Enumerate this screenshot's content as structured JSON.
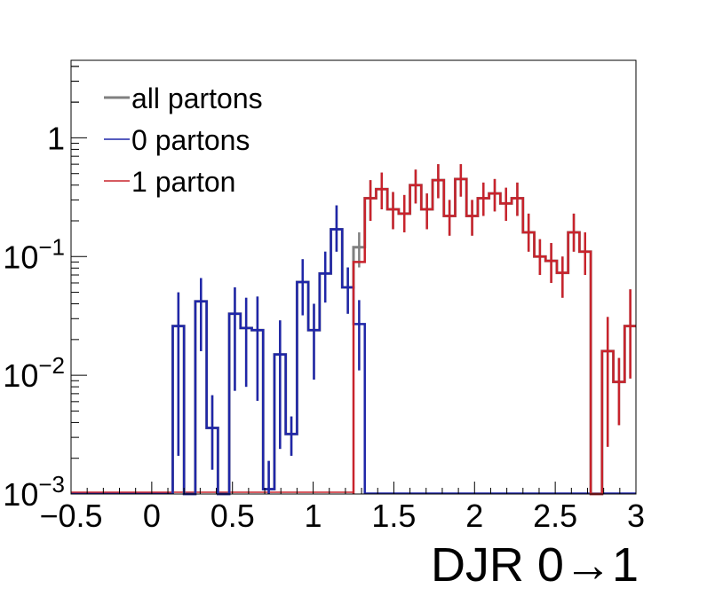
{
  "chart_data": {
    "type": "histogram",
    "xlabel": "DJR 0→1",
    "x_ticks": [
      "−0.5",
      "0",
      "0.5",
      "1",
      "1.5",
      "2",
      "2.5",
      "3"
    ],
    "x_tick_values": [
      -0.5,
      0,
      0.5,
      1,
      1.5,
      2,
      2.5,
      3
    ],
    "y_ticks": [
      {
        "value": 1,
        "base": "1",
        "exp": ""
      },
      {
        "value": 0.1,
        "base": "10",
        "exp": "−1"
      },
      {
        "value": 0.01,
        "base": "10",
        "exp": "−2"
      },
      {
        "value": 0.001,
        "base": "10",
        "exp": "−3"
      }
    ],
    "xlim": [
      -0.5,
      3.0
    ],
    "ylim": [
      0.001,
      4.5
    ],
    "log_y": true,
    "bin_width": 0.07,
    "legend": [
      {
        "name": "all partons",
        "color": "#808080"
      },
      {
        "name": "0 partons",
        "color": "#1f26a8"
      },
      {
        "name": "1 parton",
        "color": "#c8232c"
      }
    ],
    "series": [
      {
        "name": "all partons",
        "color": "#808080",
        "bins": [
          {
            "x": 0.13,
            "y": 0.026,
            "err": [
              0.0021,
              0.05
            ]
          },
          {
            "x": 0.2,
            "y": 0.001,
            "err": null
          },
          {
            "x": 0.27,
            "y": 0.042,
            "err": [
              0.016,
              0.066
            ]
          },
          {
            "x": 0.34,
            "y": 0.0036,
            "err": [
              0.0016,
              0.0068
            ]
          },
          {
            "x": 0.41,
            "y": 0.001,
            "err": null
          },
          {
            "x": 0.48,
            "y": 0.033,
            "err": [
              0.0074,
              0.055
            ]
          },
          {
            "x": 0.55,
            "y": 0.025,
            "err": [
              0.008,
              0.045
            ]
          },
          {
            "x": 0.62,
            "y": 0.024,
            "err": [
              0.0061,
              0.046
            ]
          },
          {
            "x": 0.69,
            "y": 0.0011,
            "err": [
              0.0006,
              0.0019
            ]
          },
          {
            "x": 0.76,
            "y": 0.015,
            "err": [
              0.0024,
              0.029
            ]
          },
          {
            "x": 0.83,
            "y": 0.0032,
            "err": [
              0.0021,
              0.0045
            ]
          },
          {
            "x": 0.9,
            "y": 0.061,
            "err": [
              0.032,
              0.095
            ]
          },
          {
            "x": 0.97,
            "y": 0.024,
            "err": [
              0.0092,
              0.04
            ]
          },
          {
            "x": 1.04,
            "y": 0.072,
            "err": [
              0.041,
              0.11
            ]
          },
          {
            "x": 1.11,
            "y": 0.17,
            "err": [
              0.11,
              0.27
            ]
          },
          {
            "x": 1.18,
            "y": 0.055,
            "err": [
              0.033,
              0.081
            ]
          },
          {
            "x": 1.25,
            "y": 0.12,
            "err": [
              0.081,
              0.16
            ]
          },
          {
            "x": 1.32,
            "y": 0.31,
            "err": [
              0.2,
              0.44
            ]
          },
          {
            "x": 1.39,
            "y": 0.37,
            "err": [
              0.25,
              0.51
            ]
          },
          {
            "x": 1.46,
            "y": 0.25,
            "err": [
              0.17,
              0.35
            ]
          },
          {
            "x": 1.53,
            "y": 0.23,
            "err": [
              0.16,
              0.33
            ]
          },
          {
            "x": 1.6,
            "y": 0.4,
            "err": [
              0.28,
              0.54
            ]
          },
          {
            "x": 1.67,
            "y": 0.25,
            "err": [
              0.17,
              0.34
            ]
          },
          {
            "x": 1.74,
            "y": 0.44,
            "err": [
              0.31,
              0.6
            ]
          },
          {
            "x": 1.81,
            "y": 0.22,
            "err": [
              0.15,
              0.3
            ]
          },
          {
            "x": 1.88,
            "y": 0.45,
            "err": [
              0.32,
              0.6
            ]
          },
          {
            "x": 1.95,
            "y": 0.22,
            "err": [
              0.15,
              0.3
            ]
          },
          {
            "x": 2.02,
            "y": 0.31,
            "err": [
              0.22,
              0.42
            ]
          },
          {
            "x": 2.09,
            "y": 0.34,
            "err": [
              0.24,
              0.45
            ]
          },
          {
            "x": 2.16,
            "y": 0.28,
            "err": [
              0.2,
              0.38
            ]
          },
          {
            "x": 2.23,
            "y": 0.31,
            "err": [
              0.22,
              0.42
            ]
          },
          {
            "x": 2.3,
            "y": 0.16,
            "err": [
              0.11,
              0.23
            ]
          },
          {
            "x": 2.37,
            "y": 0.1,
            "err": [
              0.07,
              0.14
            ]
          },
          {
            "x": 2.44,
            "y": 0.092,
            "err": [
              0.06,
              0.13
            ]
          },
          {
            "x": 2.51,
            "y": 0.073,
            "err": [
              0.045,
              0.1
            ]
          },
          {
            "x": 2.58,
            "y": 0.16,
            "err": [
              0.11,
              0.23
            ]
          },
          {
            "x": 2.65,
            "y": 0.11,
            "err": [
              0.07,
              0.16
            ]
          },
          {
            "x": 2.72,
            "y": 0.001,
            "err": null
          },
          {
            "x": 2.79,
            "y": 0.016,
            "err": [
              0.0025,
              0.031
            ]
          },
          {
            "x": 2.86,
            "y": 0.0088,
            "err": [
              0.0038,
              0.014
            ]
          },
          {
            "x": 2.93,
            "y": 0.026,
            "err": [
              0.0094,
              0.053
            ]
          }
        ]
      },
      {
        "name": "0 partons",
        "color": "#1f26a8",
        "bins": [
          {
            "x": 0.13,
            "y": 0.026,
            "err": [
              0.0021,
              0.05
            ]
          },
          {
            "x": 0.2,
            "y": 0.001,
            "err": null
          },
          {
            "x": 0.27,
            "y": 0.042,
            "err": [
              0.016,
              0.066
            ]
          },
          {
            "x": 0.34,
            "y": 0.0036,
            "err": [
              0.0016,
              0.0068
            ]
          },
          {
            "x": 0.41,
            "y": 0.001,
            "err": null
          },
          {
            "x": 0.48,
            "y": 0.033,
            "err": [
              0.0074,
              0.055
            ]
          },
          {
            "x": 0.55,
            "y": 0.025,
            "err": [
              0.008,
              0.045
            ]
          },
          {
            "x": 0.62,
            "y": 0.024,
            "err": [
              0.0061,
              0.046
            ]
          },
          {
            "x": 0.69,
            "y": 0.0011,
            "err": [
              0.0006,
              0.0019
            ]
          },
          {
            "x": 0.76,
            "y": 0.015,
            "err": [
              0.0024,
              0.029
            ]
          },
          {
            "x": 0.83,
            "y": 0.0032,
            "err": [
              0.0021,
              0.0045
            ]
          },
          {
            "x": 0.9,
            "y": 0.061,
            "err": [
              0.032,
              0.095
            ]
          },
          {
            "x": 0.97,
            "y": 0.024,
            "err": [
              0.0092,
              0.04
            ]
          },
          {
            "x": 1.04,
            "y": 0.072,
            "err": [
              0.041,
              0.11
            ]
          },
          {
            "x": 1.11,
            "y": 0.17,
            "err": [
              0.11,
              0.27
            ]
          },
          {
            "x": 1.18,
            "y": 0.055,
            "err": [
              0.033,
              0.081
            ]
          },
          {
            "x": 1.25,
            "y": 0.027,
            "err": [
              0.011,
              0.043
            ]
          }
        ]
      },
      {
        "name": "1 parton",
        "color": "#c8232c",
        "bins": [
          {
            "x": 1.25,
            "y": 0.09,
            "err": null
          },
          {
            "x": 1.32,
            "y": 0.31,
            "err": [
              0.2,
              0.44
            ]
          },
          {
            "x": 1.39,
            "y": 0.37,
            "err": [
              0.25,
              0.51
            ]
          },
          {
            "x": 1.46,
            "y": 0.25,
            "err": [
              0.17,
              0.35
            ]
          },
          {
            "x": 1.53,
            "y": 0.23,
            "err": [
              0.16,
              0.33
            ]
          },
          {
            "x": 1.6,
            "y": 0.4,
            "err": [
              0.28,
              0.54
            ]
          },
          {
            "x": 1.67,
            "y": 0.25,
            "err": [
              0.17,
              0.34
            ]
          },
          {
            "x": 1.74,
            "y": 0.44,
            "err": [
              0.31,
              0.6
            ]
          },
          {
            "x": 1.81,
            "y": 0.22,
            "err": [
              0.15,
              0.3
            ]
          },
          {
            "x": 1.88,
            "y": 0.45,
            "err": [
              0.32,
              0.6
            ]
          },
          {
            "x": 1.95,
            "y": 0.22,
            "err": [
              0.15,
              0.3
            ]
          },
          {
            "x": 2.02,
            "y": 0.31,
            "err": [
              0.22,
              0.42
            ]
          },
          {
            "x": 2.09,
            "y": 0.34,
            "err": [
              0.24,
              0.45
            ]
          },
          {
            "x": 2.16,
            "y": 0.28,
            "err": [
              0.2,
              0.38
            ]
          },
          {
            "x": 2.23,
            "y": 0.31,
            "err": [
              0.22,
              0.42
            ]
          },
          {
            "x": 2.3,
            "y": 0.16,
            "err": [
              0.11,
              0.23
            ]
          },
          {
            "x": 2.37,
            "y": 0.1,
            "err": [
              0.07,
              0.14
            ]
          },
          {
            "x": 2.44,
            "y": 0.092,
            "err": [
              0.06,
              0.13
            ]
          },
          {
            "x": 2.51,
            "y": 0.073,
            "err": [
              0.045,
              0.1
            ]
          },
          {
            "x": 2.58,
            "y": 0.16,
            "err": [
              0.11,
              0.23
            ]
          },
          {
            "x": 2.65,
            "y": 0.11,
            "err": [
              0.07,
              0.16
            ]
          },
          {
            "x": 2.72,
            "y": 0.001,
            "err": null
          },
          {
            "x": 2.79,
            "y": 0.016,
            "err": [
              0.0025,
              0.031
            ]
          },
          {
            "x": 2.86,
            "y": 0.0088,
            "err": [
              0.0038,
              0.014
            ]
          },
          {
            "x": 2.93,
            "y": 0.026,
            "err": [
              0.0094,
              0.053
            ]
          }
        ]
      }
    ]
  }
}
